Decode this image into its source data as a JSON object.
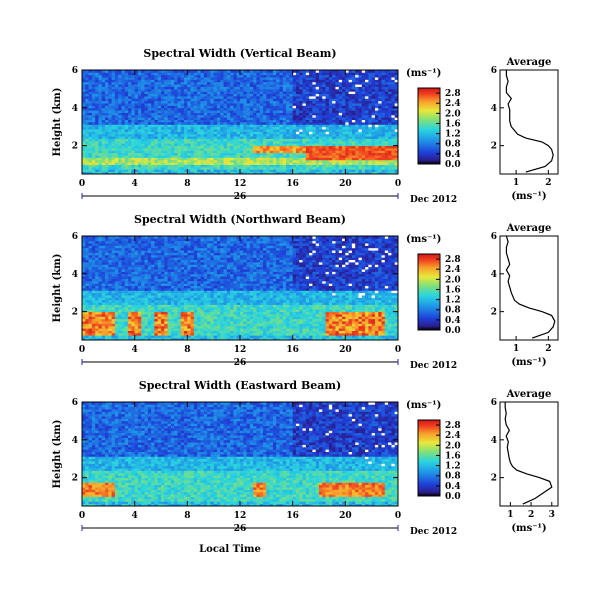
{
  "chart_data": [
    {
      "type": "heatmap",
      "title": "Spectral Width (Vertical Beam)",
      "ylabel": "Height (km)",
      "ylim": [
        0.5,
        6
      ],
      "y_ticks": [
        "2",
        "4",
        "6"
      ],
      "x_ticks": [
        "0",
        "4",
        "8",
        "12",
        "16",
        "20",
        "0"
      ],
      "xlim": [
        0,
        24
      ],
      "date_label": "26",
      "month_label": "Dec 2012",
      "colorbar": {
        "unit": "(ms⁻¹)",
        "ticks": [
          "0.0",
          "0.4",
          "0.8",
          "1.2",
          "1.6",
          "2.0",
          "2.4",
          "2.8"
        ],
        "range": [
          0,
          3.0
        ]
      },
      "average": {
        "title": "Average",
        "xlabel": "(ms⁻¹)",
        "x_ticks": [
          "1",
          "2"
        ],
        "xlim": [
          0.5,
          2.3
        ],
        "heights": [
          0.6,
          0.9,
          1.2,
          1.5,
          1.8,
          2.0,
          2.2,
          2.4,
          2.6,
          2.8,
          3.0,
          3.3,
          3.6,
          3.9,
          4.2,
          4.5,
          4.8,
          5.1,
          5.4,
          5.7,
          6.0
        ],
        "values": [
          1.3,
          1.9,
          2.1,
          2.15,
          2.1,
          2.0,
          1.8,
          1.3,
          1.05,
          0.95,
          0.85,
          0.8,
          0.8,
          0.8,
          0.75,
          0.85,
          0.7,
          0.7,
          0.75,
          0.7,
          0.7
        ]
      },
      "description_pattern": "high widths (red) 1.3-2.0 km after hour 17; moderate 1-2 km all day; low above 3.5 km"
    },
    {
      "type": "heatmap",
      "title": "Spectral Width (Northward Beam)",
      "ylabel": "Height (km)",
      "ylim": [
        0.5,
        6
      ],
      "y_ticks": [
        "2",
        "4",
        "6"
      ],
      "x_ticks": [
        "0",
        "4",
        "8",
        "12",
        "16",
        "20",
        "0"
      ],
      "xlim": [
        0,
        24
      ],
      "date_label": "26",
      "month_label": "Dec 2012",
      "colorbar": {
        "unit": "(ms⁻¹)",
        "ticks": [
          "0.0",
          "0.4",
          "0.8",
          "1.2",
          "1.6",
          "2.0",
          "2.4",
          "2.8"
        ],
        "range": [
          0,
          3.0
        ]
      },
      "average": {
        "title": "Average",
        "xlabel": "(ms⁻¹)",
        "x_ticks": [
          "1",
          "2"
        ],
        "xlim": [
          0.5,
          2.3
        ],
        "heights": [
          0.6,
          0.9,
          1.2,
          1.5,
          1.8,
          2.0,
          2.2,
          2.4,
          2.6,
          2.8,
          3.0,
          3.3,
          3.6,
          3.9,
          4.2,
          4.5,
          4.8,
          5.1,
          5.4,
          5.7,
          6.0
        ],
        "values": [
          1.5,
          2.0,
          2.15,
          2.2,
          2.1,
          1.8,
          1.4,
          1.1,
          0.95,
          0.9,
          0.85,
          0.8,
          0.75,
          0.8,
          0.7,
          0.8,
          0.75,
          0.7,
          0.7,
          0.75,
          0.7
        ]
      }
    },
    {
      "type": "heatmap",
      "title": "Spectral Width (Eastward Beam)",
      "ylabel": "Height (km)",
      "ylim": [
        0.5,
        6
      ],
      "y_ticks": [
        "2",
        "4",
        "6"
      ],
      "x_ticks": [
        "0",
        "4",
        "8",
        "12",
        "16",
        "20",
        "0"
      ],
      "xlim": [
        0,
        24
      ],
      "date_label": "26",
      "month_label": "Dec 2012",
      "xlabel": "Local Time",
      "colorbar": {
        "unit": "(ms⁻¹)",
        "ticks": [
          "0.0",
          "0.4",
          "0.8",
          "1.2",
          "1.6",
          "2.0",
          "2.4",
          "2.8"
        ],
        "range": [
          0,
          3.0
        ]
      },
      "average": {
        "title": "Average",
        "xlabel": "(ms⁻¹)",
        "x_ticks": [
          "1",
          "2",
          "3"
        ],
        "xlim": [
          0.5,
          3.3
        ],
        "heights": [
          0.6,
          0.9,
          1.2,
          1.5,
          1.8,
          2.0,
          2.2,
          2.4,
          2.6,
          2.8,
          3.0,
          3.3,
          3.6,
          3.9,
          4.2,
          4.5,
          4.8,
          5.1,
          5.4,
          5.7,
          6.0
        ],
        "values": [
          1.6,
          2.2,
          2.6,
          3.0,
          2.9,
          2.4,
          1.8,
          1.3,
          1.1,
          1.0,
          0.95,
          0.9,
          0.85,
          0.9,
          0.8,
          0.95,
          0.8,
          0.75,
          0.8,
          0.75,
          0.75
        ]
      }
    }
  ]
}
